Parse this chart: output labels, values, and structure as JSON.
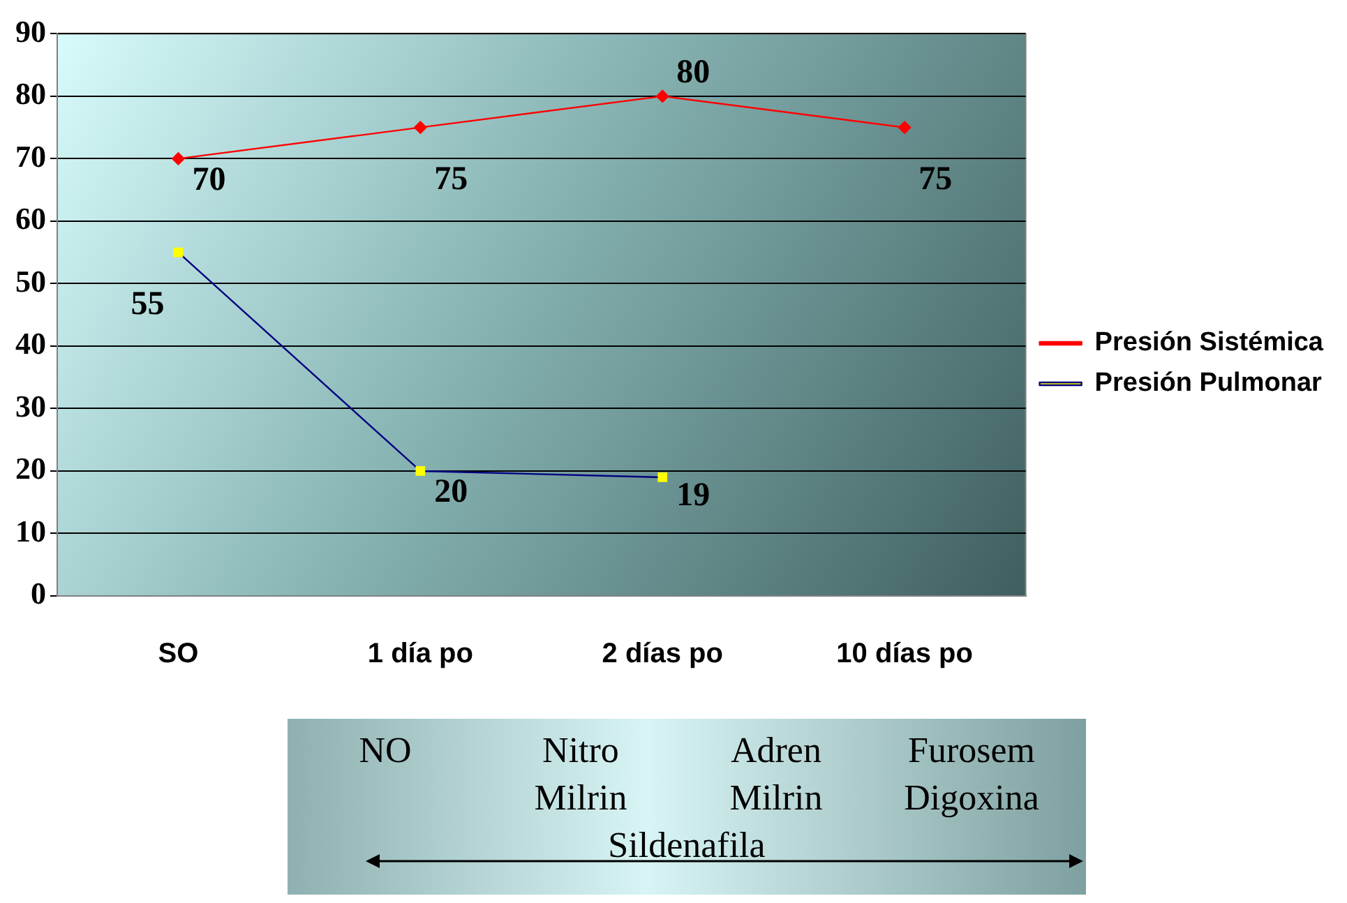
{
  "chart_data": {
    "type": "line",
    "categories": [
      "SO",
      "1 día po",
      "2 días po",
      "10 días po"
    ],
    "series": [
      {
        "name": "Presión Sistémica",
        "color": "#ff0000",
        "marker": "diamond",
        "values": [
          70,
          75,
          80,
          75
        ]
      },
      {
        "name": "Presión Pulmonar",
        "color": "#000080",
        "marker": "square",
        "values": [
          55,
          20,
          19,
          null
        ]
      }
    ],
    "ylim": [
      0,
      90
    ],
    "yticks": [
      0,
      10,
      20,
      30,
      40,
      50,
      60,
      70,
      80,
      90
    ],
    "grid": "y",
    "legend": "right",
    "data_labels": true,
    "annotations": [
      "NO",
      "Nitro",
      "Adren",
      "Furosem",
      "Milrin",
      "Milrin",
      "Digoxina",
      "Sildenafila"
    ]
  }
}
